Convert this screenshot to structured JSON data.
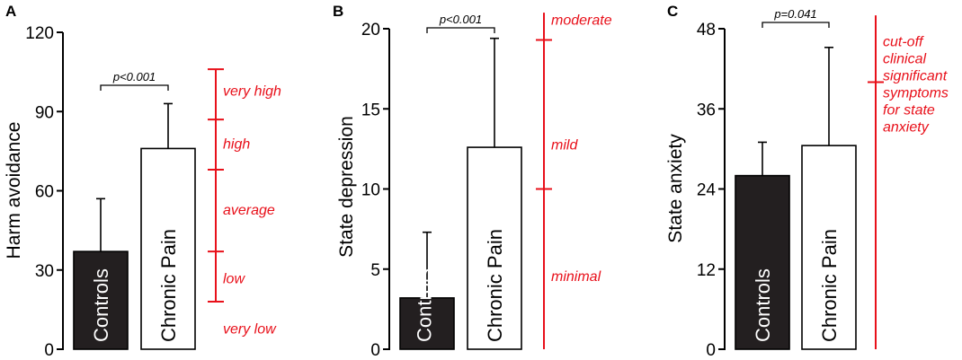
{
  "colors": {
    "controls_bar": "#231f20",
    "chronic_bar": "#ffffff",
    "reference": "#e8101a",
    "axis": "#000000"
  },
  "chart_data": [
    {
      "type": "bar",
      "panel": "A",
      "ylabel": "Harm avoidance",
      "ylim": [
        0,
        120
      ],
      "yticks": [
        0,
        30,
        60,
        90,
        120
      ],
      "categories": [
        "Controls",
        "Chronic Pain"
      ],
      "values": [
        37,
        76
      ],
      "error_upper": [
        57,
        93
      ],
      "significance": {
        "text": "p<0.001"
      },
      "reference_scale": {
        "boundaries": [
          18,
          37,
          68,
          87,
          106
        ],
        "labels": [
          {
            "text": "very high",
            "y": 98
          },
          {
            "text": "high",
            "y": 78
          },
          {
            "text": "average",
            "y": 53
          },
          {
            "text": "low",
            "y": 27
          },
          {
            "text": "very low",
            "y": 8
          }
        ]
      }
    },
    {
      "type": "bar",
      "panel": "B",
      "ylabel": "State depression",
      "ylim": [
        0,
        20
      ],
      "yticks": [
        0,
        5,
        10,
        15,
        20
      ],
      "categories": [
        "Controls",
        "Chronic Pain"
      ],
      "values": [
        3.2,
        12.6
      ],
      "error_upper": [
        7.3,
        19.4
      ],
      "significance": {
        "text": "p<0.001"
      },
      "reference_scale": {
        "line_range": [
          0,
          21
        ],
        "boundaries": [
          10,
          19.3
        ],
        "labels": [
          {
            "text": "moderate",
            "y": 20.6
          },
          {
            "text": "mild",
            "y": 12.8
          },
          {
            "text": "minimal",
            "y": 4.6
          }
        ]
      }
    },
    {
      "type": "bar",
      "panel": "C",
      "ylabel": "State anxiety",
      "ylim": [
        0,
        48
      ],
      "yticks": [
        0,
        12,
        24,
        36,
        48
      ],
      "categories": [
        "Controls",
        "Chronic Pain"
      ],
      "values": [
        26,
        30.5
      ],
      "error_upper": [
        31,
        45.2
      ],
      "significance": {
        "text": "p=0.041"
      },
      "reference_scale": {
        "line_range": [
          0,
          50
        ],
        "boundaries": [
          40
        ],
        "labels": [
          {
            "text": "cut-off clinical significant symptoms for state anxiety",
            "y": 40
          }
        ],
        "label_lines": [
          "cut-off",
          "clinical",
          "significant",
          "symptoms",
          "for state",
          "anxiety"
        ]
      }
    }
  ]
}
